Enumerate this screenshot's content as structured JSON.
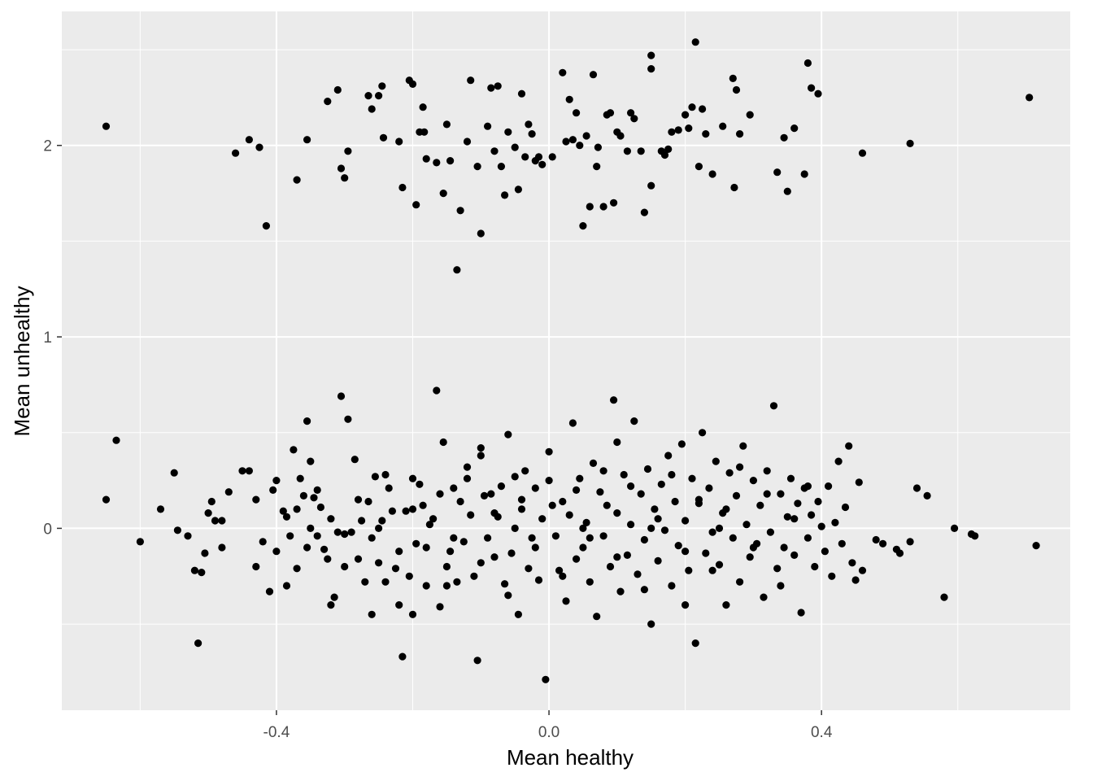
{
  "chart_data": {
    "type": "scatter",
    "xlabel": "Mean healthy",
    "ylabel": "Mean unhealthy",
    "xlim": [
      -0.715,
      0.765
    ],
    "ylim": [
      -0.95,
      2.7
    ],
    "x_ticks": [
      -0.4,
      0.0,
      0.4
    ],
    "x_tick_labels": [
      "-0.4",
      "0.0",
      "0.4"
    ],
    "y_ticks": [
      0,
      1,
      2
    ],
    "y_tick_labels": [
      "0",
      "1",
      "2"
    ],
    "grid": true,
    "panel_background": "#ebebeb",
    "grid_color": "#ffffff",
    "point_color": "#000000",
    "points_upper_cluster": [
      [
        -0.65,
        2.1
      ],
      [
        -0.46,
        1.96
      ],
      [
        -0.44,
        2.03
      ],
      [
        -0.425,
        1.99
      ],
      [
        -0.415,
        1.58
      ],
      [
        -0.37,
        1.82
      ],
      [
        -0.355,
        2.03
      ],
      [
        -0.325,
        2.23
      ],
      [
        -0.31,
        2.29
      ],
      [
        -0.305,
        1.88
      ],
      [
        -0.3,
        1.83
      ],
      [
        -0.295,
        1.97
      ],
      [
        -0.265,
        2.26
      ],
      [
        -0.26,
        2.19
      ],
      [
        -0.25,
        2.26
      ],
      [
        -0.245,
        2.31
      ],
      [
        -0.243,
        2.04
      ],
      [
        -0.22,
        2.02
      ],
      [
        -0.215,
        1.78
      ],
      [
        -0.205,
        2.34
      ],
      [
        -0.2,
        2.32
      ],
      [
        -0.195,
        1.69
      ],
      [
        -0.19,
        2.07
      ],
      [
        -0.185,
        2.2
      ],
      [
        -0.183,
        2.07
      ],
      [
        -0.18,
        1.93
      ],
      [
        -0.165,
        1.91
      ],
      [
        -0.155,
        1.75
      ],
      [
        -0.15,
        2.11
      ],
      [
        -0.145,
        1.92
      ],
      [
        -0.135,
        1.35
      ],
      [
        -0.13,
        1.66
      ],
      [
        -0.12,
        2.02
      ],
      [
        -0.115,
        2.34
      ],
      [
        -0.105,
        1.89
      ],
      [
        -0.1,
        1.54
      ],
      [
        -0.09,
        2.1
      ],
      [
        -0.085,
        2.3
      ],
      [
        -0.08,
        1.97
      ],
      [
        -0.075,
        2.31
      ],
      [
        -0.07,
        1.89
      ],
      [
        -0.065,
        1.74
      ],
      [
        -0.06,
        2.07
      ],
      [
        -0.05,
        1.99
      ],
      [
        -0.045,
        1.77
      ],
      [
        -0.04,
        2.27
      ],
      [
        -0.035,
        1.94
      ],
      [
        -0.03,
        2.11
      ],
      [
        -0.025,
        2.06
      ],
      [
        -0.02,
        1.92
      ],
      [
        -0.015,
        1.94
      ],
      [
        -0.01,
        1.9
      ],
      [
        0.005,
        1.94
      ],
      [
        0.02,
        2.38
      ],
      [
        0.025,
        2.02
      ],
      [
        0.03,
        2.24
      ],
      [
        0.035,
        2.03
      ],
      [
        0.04,
        2.17
      ],
      [
        0.045,
        2
      ],
      [
        0.05,
        1.58
      ],
      [
        0.055,
        2.05
      ],
      [
        0.06,
        1.68
      ],
      [
        0.065,
        2.37
      ],
      [
        0.07,
        1.89
      ],
      [
        0.072,
        1.99
      ],
      [
        0.08,
        1.68
      ],
      [
        0.085,
        2.16
      ],
      [
        0.09,
        2.17
      ],
      [
        0.095,
        1.7
      ],
      [
        0.1,
        2.07
      ],
      [
        0.105,
        2.05
      ],
      [
        0.115,
        1.97
      ],
      [
        0.12,
        2.17
      ],
      [
        0.125,
        2.14
      ],
      [
        0.135,
        1.97
      ],
      [
        0.14,
        1.65
      ],
      [
        0.15,
        1.79
      ],
      [
        0.15,
        2.4
      ],
      [
        0.15,
        2.47
      ],
      [
        0.165,
        1.97
      ],
      [
        0.17,
        1.95
      ],
      [
        0.175,
        1.98
      ],
      [
        0.18,
        2.07
      ],
      [
        0.19,
        2.08
      ],
      [
        0.2,
        2.16
      ],
      [
        0.205,
        2.09
      ],
      [
        0.21,
        2.2
      ],
      [
        0.215,
        2.54
      ],
      [
        0.22,
        1.89
      ],
      [
        0.225,
        2.19
      ],
      [
        0.23,
        2.06
      ],
      [
        0.24,
        1.85
      ],
      [
        0.255,
        2.1
      ],
      [
        0.27,
        2.35
      ],
      [
        0.275,
        2.29
      ],
      [
        0.272,
        1.78
      ],
      [
        0.28,
        2.06
      ],
      [
        0.295,
        2.16
      ],
      [
        0.335,
        1.86
      ],
      [
        0.345,
        2.04
      ],
      [
        0.35,
        1.76
      ],
      [
        0.36,
        2.09
      ],
      [
        0.375,
        1.85
      ],
      [
        0.38,
        2.43
      ],
      [
        0.385,
        2.3
      ],
      [
        0.395,
        2.27
      ],
      [
        0.46,
        1.96
      ],
      [
        0.53,
        2.01
      ],
      [
        0.705,
        2.25
      ]
    ],
    "points_lower_cluster": [
      [
        -0.65,
        0.15
      ],
      [
        -0.635,
        0.46
      ],
      [
        -0.6,
        -0.07
      ],
      [
        -0.55,
        0.29
      ],
      [
        -0.545,
        -0.01
      ],
      [
        -0.53,
        -0.04
      ],
      [
        -0.52,
        -0.22
      ],
      [
        -0.515,
        -0.6
      ],
      [
        -0.51,
        -0.23
      ],
      [
        -0.505,
        -0.13
      ],
      [
        -0.5,
        0.08
      ],
      [
        -0.495,
        0.14
      ],
      [
        -0.49,
        0.04
      ],
      [
        -0.48,
        0.04
      ],
      [
        -0.47,
        0.19
      ],
      [
        -0.44,
        0.3
      ],
      [
        -0.43,
        0.15
      ],
      [
        -0.42,
        -0.07
      ],
      [
        -0.41,
        -0.33
      ],
      [
        -0.405,
        0.2
      ],
      [
        -0.4,
        -0.12
      ],
      [
        -0.39,
        0.09
      ],
      [
        -0.385,
        0.06
      ],
      [
        -0.38,
        -0.04
      ],
      [
        -0.375,
        0.41
      ],
      [
        -0.37,
        -0.21
      ],
      [
        -0.365,
        0.26
      ],
      [
        -0.36,
        0.17
      ],
      [
        -0.355,
        0.56
      ],
      [
        -0.35,
        0.35
      ],
      [
        -0.345,
        0.16
      ],
      [
        -0.34,
        -0.04
      ],
      [
        -0.335,
        0.11
      ],
      [
        -0.33,
        -0.11
      ],
      [
        -0.325,
        -0.16
      ],
      [
        -0.32,
        -0.4
      ],
      [
        -0.315,
        -0.36
      ],
      [
        -0.31,
        -0.02
      ],
      [
        -0.305,
        0.69
      ],
      [
        -0.3,
        -0.03
      ],
      [
        -0.295,
        0.57
      ],
      [
        -0.29,
        -0.02
      ],
      [
        -0.285,
        0.36
      ],
      [
        -0.28,
        -0.16
      ],
      [
        -0.275,
        0.04
      ],
      [
        -0.27,
        -0.28
      ],
      [
        -0.265,
        0.14
      ],
      [
        -0.26,
        -0.45
      ],
      [
        -0.255,
        0.27
      ],
      [
        -0.25,
        -0.18
      ],
      [
        -0.245,
        0.04
      ],
      [
        -0.24,
        -0.28
      ],
      [
        -0.235,
        0.21
      ],
      [
        -0.23,
        0.09
      ],
      [
        -0.225,
        -0.21
      ],
      [
        -0.22,
        -0.4
      ],
      [
        -0.215,
        -0.67
      ],
      [
        -0.21,
        0.09
      ],
      [
        -0.205,
        -0.25
      ],
      [
        -0.2,
        0.26
      ],
      [
        -0.195,
        -0.08
      ],
      [
        -0.19,
        0.23
      ],
      [
        -0.185,
        0.12
      ],
      [
        -0.18,
        -0.1
      ],
      [
        -0.175,
        0.02
      ],
      [
        -0.17,
        0.05
      ],
      [
        -0.165,
        0.72
      ],
      [
        -0.16,
        -0.41
      ],
      [
        -0.155,
        0.45
      ],
      [
        -0.15,
        -0.3
      ],
      [
        -0.145,
        -0.12
      ],
      [
        -0.14,
        0.21
      ],
      [
        -0.135,
        -0.28
      ],
      [
        -0.13,
        0.14
      ],
      [
        -0.125,
        -0.07
      ],
      [
        -0.12,
        0.26
      ],
      [
        -0.115,
        0.07
      ],
      [
        -0.11,
        -0.25
      ],
      [
        -0.105,
        -0.69
      ],
      [
        -0.1,
        0.38
      ],
      [
        -0.095,
        0.17
      ],
      [
        -0.09,
        -0.05
      ],
      [
        -0.085,
        0.18
      ],
      [
        -0.08,
        -0.15
      ],
      [
        -0.075,
        0.06
      ],
      [
        -0.07,
        0.22
      ],
      [
        -0.065,
        -0.29
      ],
      [
        -0.06,
        0.49
      ],
      [
        -0.055,
        -0.13
      ],
      [
        -0.05,
        0.27
      ],
      [
        -0.045,
        -0.45
      ],
      [
        -0.04,
        0.1
      ],
      [
        -0.035,
        0.3
      ],
      [
        -0.03,
        -0.21
      ],
      [
        -0.025,
        -0.05
      ],
      [
        -0.02,
        0.21
      ],
      [
        -0.015,
        -0.27
      ],
      [
        -0.01,
        0.05
      ],
      [
        -0.005,
        -0.79
      ],
      [
        0,
        0.25
      ],
      [
        0.005,
        0.12
      ],
      [
        0.01,
        -0.04
      ],
      [
        0.015,
        -0.22
      ],
      [
        0.02,
        0.14
      ],
      [
        0.025,
        -0.38
      ],
      [
        0.03,
        0.07
      ],
      [
        0.035,
        0.55
      ],
      [
        0.04,
        -0.16
      ],
      [
        0.045,
        0.26
      ],
      [
        0.05,
        -0.1
      ],
      [
        0.055,
        0.03
      ],
      [
        0.06,
        -0.28
      ],
      [
        0.065,
        0.34
      ],
      [
        0.07,
        -0.46
      ],
      [
        0.075,
        0.19
      ],
      [
        0.08,
        -0.04
      ],
      [
        0.085,
        0.12
      ],
      [
        0.09,
        -0.2
      ],
      [
        0.095,
        0.67
      ],
      [
        0.1,
        0.08
      ],
      [
        0.105,
        -0.33
      ],
      [
        0.11,
        0.28
      ],
      [
        0.115,
        -0.14
      ],
      [
        0.12,
        0.02
      ],
      [
        0.125,
        0.56
      ],
      [
        0.13,
        -0.24
      ],
      [
        0.135,
        0.18
      ],
      [
        0.14,
        -0.06
      ],
      [
        0.145,
        0.31
      ],
      [
        0.15,
        -0.5
      ],
      [
        0.155,
        0.1
      ],
      [
        0.16,
        -0.17
      ],
      [
        0.165,
        0.23
      ],
      [
        0.17,
        -0.01
      ],
      [
        0.175,
        0.38
      ],
      [
        0.18,
        -0.3
      ],
      [
        0.185,
        0.14
      ],
      [
        0.19,
        -0.09
      ],
      [
        0.195,
        0.44
      ],
      [
        0.2,
        0.04
      ],
      [
        0.205,
        -0.22
      ],
      [
        0.21,
        0.26
      ],
      [
        0.215,
        -0.6
      ],
      [
        0.22,
        0.13
      ],
      [
        0.225,
        0.5
      ],
      [
        0.23,
        -0.13
      ],
      [
        0.235,
        0.21
      ],
      [
        0.24,
        -0.02
      ],
      [
        0.245,
        0.35
      ],
      [
        0.25,
        -0.19
      ],
      [
        0.255,
        0.08
      ],
      [
        0.26,
        -0.4
      ],
      [
        0.265,
        0.29
      ],
      [
        0.27,
        -0.05
      ],
      [
        0.275,
        0.17
      ],
      [
        0.28,
        -0.28
      ],
      [
        0.285,
        0.43
      ],
      [
        0.29,
        0.02
      ],
      [
        0.295,
        -0.15
      ],
      [
        0.3,
        0.25
      ],
      [
        0.305,
        -0.08
      ],
      [
        0.31,
        0.12
      ],
      [
        0.315,
        -0.36
      ],
      [
        0.32,
        0.3
      ],
      [
        0.325,
        -0.02
      ],
      [
        0.33,
        0.64
      ],
      [
        0.335,
        -0.21
      ],
      [
        0.34,
        0.18
      ],
      [
        0.345,
        -0.1
      ],
      [
        0.35,
        0.06
      ],
      [
        0.355,
        0.26
      ],
      [
        0.36,
        -0.14
      ],
      [
        0.365,
        0.13
      ],
      [
        0.37,
        -0.44
      ],
      [
        0.375,
        0.21
      ],
      [
        0.38,
        -0.05
      ],
      [
        0.385,
        0.07
      ],
      [
        0.39,
        -0.2
      ],
      [
        0.395,
        0.14
      ],
      [
        0.4,
        0.01
      ],
      [
        0.405,
        -0.12
      ],
      [
        0.41,
        0.22
      ],
      [
        0.415,
        -0.25
      ],
      [
        0.42,
        0.03
      ],
      [
        0.425,
        0.35
      ],
      [
        0.43,
        -0.08
      ],
      [
        0.435,
        0.11
      ],
      [
        0.44,
        0.43
      ],
      [
        0.445,
        -0.18
      ],
      [
        0.45,
        -0.27
      ],
      [
        0.455,
        0.24
      ],
      [
        0.46,
        -0.22
      ],
      [
        0.48,
        -0.06
      ],
      [
        0.49,
        -0.08
      ],
      [
        0.51,
        -0.11
      ],
      [
        0.515,
        -0.13
      ],
      [
        0.53,
        -0.07
      ],
      [
        0.54,
        0.21
      ],
      [
        0.555,
        0.17
      ],
      [
        0.58,
        -0.36
      ],
      [
        0.595,
        0
      ],
      [
        0.62,
        -0.03
      ],
      [
        0.625,
        -0.04
      ],
      [
        0.715,
        -0.09
      ],
      [
        -0.57,
        0.1
      ],
      [
        -0.48,
        -0.1
      ],
      [
        -0.45,
        0.3
      ],
      [
        -0.43,
        -0.2
      ],
      [
        -0.4,
        0.25
      ],
      [
        -0.385,
        -0.3
      ],
      [
        -0.37,
        0.1
      ],
      [
        -0.355,
        -0.1
      ],
      [
        -0.34,
        0.2
      ],
      [
        -0.32,
        0.05
      ],
      [
        -0.3,
        -0.2
      ],
      [
        -0.28,
        0.15
      ],
      [
        -0.26,
        -0.05
      ],
      [
        -0.24,
        0.28
      ],
      [
        -0.22,
        -0.12
      ],
      [
        -0.2,
        0.1
      ],
      [
        -0.18,
        -0.3
      ],
      [
        -0.16,
        0.18
      ],
      [
        -0.14,
        -0.05
      ],
      [
        -0.12,
        0.32
      ],
      [
        -0.1,
        -0.18
      ],
      [
        -0.08,
        0.08
      ],
      [
        -0.06,
        -0.35
      ],
      [
        -0.04,
        0.15
      ],
      [
        -0.02,
        -0.1
      ],
      [
        0,
        0.4
      ],
      [
        0.02,
        -0.25
      ],
      [
        0.04,
        0.2
      ],
      [
        0.06,
        -0.05
      ],
      [
        0.08,
        0.3
      ],
      [
        0.1,
        -0.15
      ],
      [
        0.12,
        0.22
      ],
      [
        0.14,
        -0.32
      ],
      [
        0.16,
        0.05
      ],
      [
        0.18,
        0.28
      ],
      [
        0.2,
        -0.12
      ],
      [
        0.22,
        0.15
      ],
      [
        0.24,
        -0.22
      ],
      [
        0.26,
        0.1
      ],
      [
        0.28,
        0.32
      ],
      [
        0.3,
        -0.1
      ],
      [
        0.32,
        0.18
      ],
      [
        0.34,
        -0.3
      ],
      [
        0.36,
        0.05
      ],
      [
        0.38,
        0.22
      ],
      [
        -0.25,
        0.0
      ],
      [
        -0.15,
        -0.2
      ],
      [
        -0.05,
        0.0
      ],
      [
        0.05,
        0.0
      ],
      [
        0.15,
        0.0
      ],
      [
        0.25,
        0.0
      ],
      [
        -0.35,
        0.0
      ],
      [
        -0.2,
        -0.45
      ],
      [
        0.1,
        0.45
      ],
      [
        -0.1,
        0.42
      ],
      [
        0.2,
        -0.4
      ]
    ]
  }
}
